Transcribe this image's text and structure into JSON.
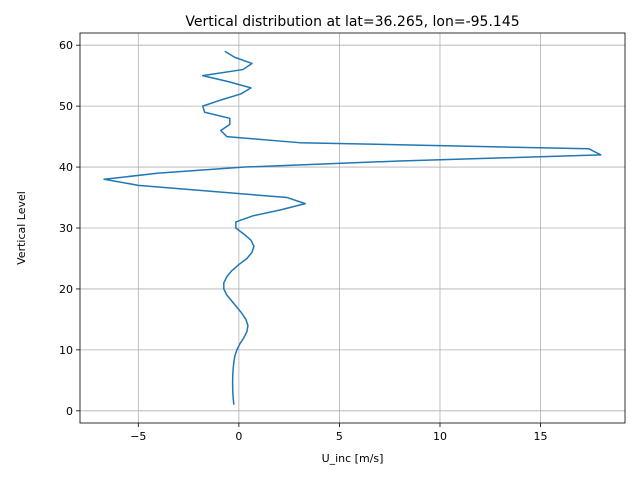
{
  "chart_data": {
    "type": "line",
    "title": "Vertical distribution at lat=36.265, lon=-95.145",
    "xlabel": "U_inc [m/s]",
    "ylabel": "Vertical Level",
    "xlim": [
      -7.9,
      19.2
    ],
    "ylim": [
      -2,
      62
    ],
    "xticks": [
      -5,
      0,
      5,
      10,
      15
    ],
    "yticks": [
      0,
      10,
      20,
      30,
      40,
      50,
      60
    ],
    "xtick_labels": [
      "−5",
      "0",
      "5",
      "10",
      "15"
    ],
    "ytick_labels": [
      "0",
      "10",
      "20",
      "30",
      "40",
      "50",
      "60"
    ],
    "grid": true,
    "legend": "none",
    "series": [
      {
        "color": "#1f77b4",
        "points": [
          [
            -0.25,
            1
          ],
          [
            -0.28,
            2
          ],
          [
            -0.3,
            3
          ],
          [
            -0.31,
            4
          ],
          [
            -0.31,
            5
          ],
          [
            -0.3,
            6
          ],
          [
            -0.28,
            7
          ],
          [
            -0.25,
            8
          ],
          [
            -0.2,
            9
          ],
          [
            -0.1,
            10
          ],
          [
            0.05,
            11
          ],
          [
            0.25,
            12
          ],
          [
            0.4,
            13
          ],
          [
            0.45,
            14
          ],
          [
            0.35,
            15
          ],
          [
            0.15,
            16
          ],
          [
            -0.1,
            17
          ],
          [
            -0.35,
            18
          ],
          [
            -0.6,
            19
          ],
          [
            -0.75,
            20
          ],
          [
            -0.75,
            21
          ],
          [
            -0.6,
            22
          ],
          [
            -0.35,
            23
          ],
          [
            0.0,
            24
          ],
          [
            0.4,
            25
          ],
          [
            0.65,
            26
          ],
          [
            0.75,
            27
          ],
          [
            0.6,
            28
          ],
          [
            0.25,
            29
          ],
          [
            -0.15,
            30
          ],
          [
            -0.15,
            31
          ],
          [
            0.7,
            32
          ],
          [
            2.1,
            33
          ],
          [
            3.3,
            34
          ],
          [
            2.4,
            35
          ],
          [
            -5.0,
            37
          ],
          [
            -6.7,
            38
          ],
          [
            -4.0,
            39
          ],
          [
            0.3,
            40
          ],
          [
            8.0,
            41
          ],
          [
            18.0,
            42
          ],
          [
            17.4,
            43
          ],
          [
            3.0,
            44
          ],
          [
            -0.6,
            45
          ],
          [
            -0.9,
            46
          ],
          [
            -0.45,
            47
          ],
          [
            -0.45,
            48
          ],
          [
            -1.7,
            49
          ],
          [
            -1.8,
            50
          ],
          [
            -0.9,
            51
          ],
          [
            0.1,
            52
          ],
          [
            0.6,
            53
          ],
          [
            -0.5,
            54
          ],
          [
            -1.8,
            55
          ],
          [
            0.2,
            56
          ],
          [
            0.65,
            57
          ],
          [
            -0.2,
            58
          ],
          [
            -0.7,
            59
          ]
        ]
      }
    ]
  }
}
